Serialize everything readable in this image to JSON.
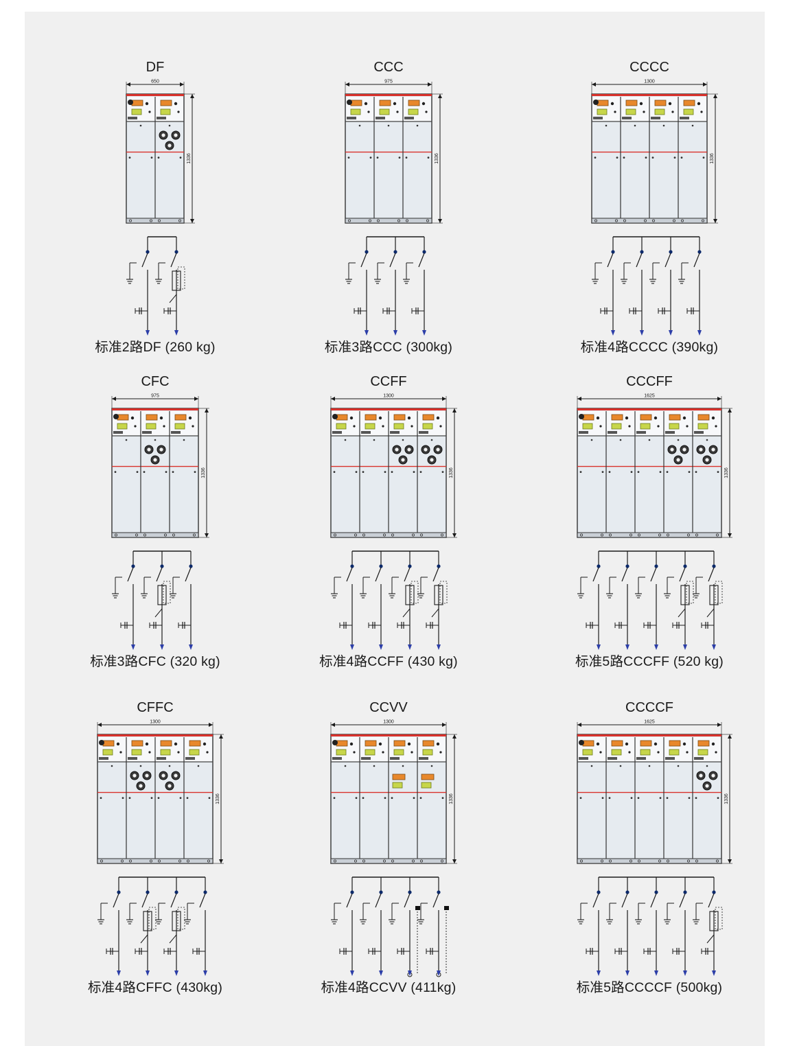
{
  "colors": {
    "cabinet_fill": "#e6ebf0",
    "panel_fill": "#e9edf2",
    "accent_red": "#d9312b",
    "orange": "#e8882c",
    "yellow_green": "#c7d64a",
    "line": "#1a1a1a",
    "terminal_dot": "#0d2a6b",
    "terminal_arrow": "#2c3ea8"
  },
  "units": [
    {
      "type_code": "DF",
      "caption": "标准2路DF (260 kg)",
      "width_dim": "650",
      "height_dim": "1336",
      "sequence": "DF"
    },
    {
      "type_code": "CCC",
      "caption": "标准3路CCC (300kg)",
      "width_dim": "975",
      "height_dim": "1336",
      "sequence": "CCC"
    },
    {
      "type_code": "CCCC",
      "caption": "标准4路CCCC (390kg)",
      "width_dim": "1300",
      "height_dim": "1336",
      "sequence": "CCCC"
    },
    {
      "type_code": "CFC",
      "caption": "标准3路CFC (320 kg)",
      "width_dim": "975",
      "height_dim": "1336",
      "sequence": "CFC"
    },
    {
      "type_code": "CCFF",
      "caption": "标准4路CCFF (430 kg)",
      "width_dim": "1300",
      "height_dim": "1336",
      "sequence": "CCFF"
    },
    {
      "type_code": "CCCFF",
      "caption": "标准5路CCCFF  (520 kg)",
      "width_dim": "1625",
      "height_dim": "1336",
      "sequence": "CCCFF"
    },
    {
      "type_code": "CFFC",
      "caption": "标准4路CFFC  (430kg)",
      "width_dim": "1300",
      "height_dim": "1336",
      "sequence": "CFFC"
    },
    {
      "type_code": "CCVV",
      "caption": "标准4路CCVV  (411kg)",
      "width_dim": "1300",
      "height_dim": "1336",
      "sequence": "CCVV"
    },
    {
      "type_code": "CCCCF",
      "caption": "标准5路CCCCF  (500kg)",
      "width_dim": "1625",
      "height_dim": "1336",
      "sequence": "CCCCF"
    }
  ]
}
